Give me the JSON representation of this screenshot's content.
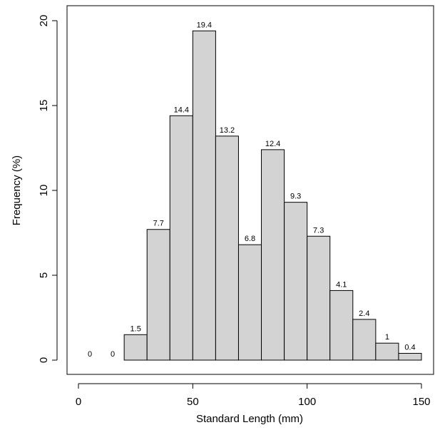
{
  "chart_data": {
    "type": "bar",
    "title": "",
    "xlabel": "Standard Length (mm)",
    "ylabel": "Frequency (%)",
    "xlim": [
      0,
      150
    ],
    "ylim": [
      0,
      20
    ],
    "x_ticks": [
      0,
      50,
      100,
      150
    ],
    "y_ticks": [
      0,
      5,
      10,
      15,
      20
    ],
    "bin_width": 10,
    "bins": [
      {
        "start": 0,
        "end": 10,
        "value": 0,
        "label": "0"
      },
      {
        "start": 10,
        "end": 20,
        "value": 0,
        "label": "0"
      },
      {
        "start": 20,
        "end": 30,
        "value": 1.5,
        "label": "1.5"
      },
      {
        "start": 30,
        "end": 40,
        "value": 7.7,
        "label": "7.7"
      },
      {
        "start": 40,
        "end": 50,
        "value": 14.4,
        "label": "14.4"
      },
      {
        "start": 50,
        "end": 60,
        "value": 19.4,
        "label": "19.4"
      },
      {
        "start": 60,
        "end": 70,
        "value": 13.2,
        "label": "13.2"
      },
      {
        "start": 70,
        "end": 80,
        "value": 6.8,
        "label": "6.8"
      },
      {
        "start": 80,
        "end": 90,
        "value": 12.4,
        "label": "12.4"
      },
      {
        "start": 90,
        "end": 100,
        "value": 9.3,
        "label": "9.3"
      },
      {
        "start": 100,
        "end": 110,
        "value": 7.3,
        "label": "7.3"
      },
      {
        "start": 110,
        "end": 120,
        "value": 4.1,
        "label": "4.1"
      },
      {
        "start": 120,
        "end": 130,
        "value": 2.4,
        "label": "2.4"
      },
      {
        "start": 130,
        "end": 140,
        "value": 1,
        "label": "1"
      },
      {
        "start": 140,
        "end": 150,
        "value": 0.4,
        "label": "0.4"
      }
    ],
    "bar_fill": "#d3d3d3",
    "bar_stroke": "#000000",
    "grid": false,
    "legend": "none"
  }
}
